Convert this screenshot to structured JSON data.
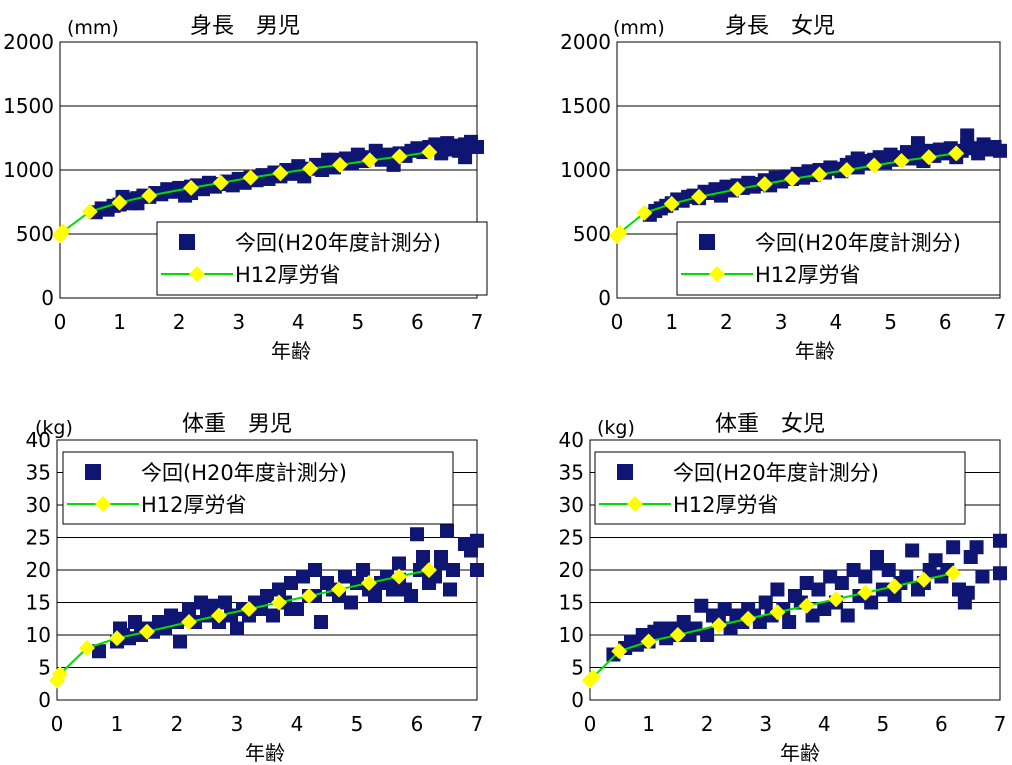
{
  "chart_data": [
    {
      "type": "scatter",
      "title": "身長　男児",
      "unit": "(mm)",
      "xlabel": "年齢",
      "xlim": [
        0,
        7
      ],
      "ylim": [
        0,
        2000
      ],
      "xticks": [
        "0",
        "1",
        "2",
        "3",
        "4",
        "5",
        "6",
        "7"
      ],
      "yticks": [
        "0",
        "500",
        "1000",
        "1500",
        "2000"
      ],
      "grid": true,
      "legend": "center-inside",
      "series": [
        {
          "name": "今回(H20年度計測分)",
          "color": "#0f1572",
          "x": [
            0.6,
            0.7,
            0.8,
            0.9,
            1.0,
            1.05,
            1.1,
            1.15,
            1.2,
            1.3,
            1.4,
            1.5,
            1.6,
            1.7,
            1.8,
            1.9,
            2.0,
            2.1,
            2.2,
            2.3,
            2.4,
            2.5,
            2.6,
            2.7,
            2.8,
            2.9,
            3.0,
            3.1,
            3.2,
            3.3,
            3.4,
            3.5,
            3.6,
            3.7,
            3.8,
            3.9,
            4.0,
            4.1,
            4.2,
            4.3,
            4.4,
            4.5,
            4.6,
            4.7,
            4.8,
            4.9,
            5.0,
            5.1,
            5.2,
            5.3,
            5.4,
            5.5,
            5.6,
            5.7,
            5.8,
            5.9,
            6.0,
            6.1,
            6.2,
            6.3,
            6.4,
            6.5,
            6.6,
            6.7,
            6.8,
            6.9,
            7.0,
            1.3,
            2.2,
            3.6,
            4.6,
            5.6,
            6.5,
            6.8
          ],
          "y": [
            670,
            700,
            690,
            720,
            730,
            790,
            760,
            770,
            740,
            780,
            800,
            790,
            820,
            810,
            850,
            830,
            860,
            800,
            870,
            880,
            850,
            900,
            870,
            890,
            910,
            880,
            930,
            900,
            940,
            920,
            960,
            930,
            980,
            950,
            1000,
            970,
            1030,
            950,
            1010,
            1040,
            1000,
            1080,
            1020,
            1060,
            1090,
            1050,
            1120,
            1070,
            1100,
            1150,
            1080,
            1120,
            1060,
            1130,
            1110,
            1150,
            1170,
            1140,
            1180,
            1200,
            1130,
            1160,
            1190,
            1150,
            1200,
            1220,
            1180,
            740,
            820,
            980,
            1080,
            1040,
            1210,
            1100
          ]
        },
        {
          "name": "H12厚労省",
          "color": "#00dd00",
          "marker_color": "#ffff00",
          "x": [
            0,
            0.05,
            0.5,
            1.0,
            1.5,
            2.2,
            2.7,
            3.2,
            3.7,
            4.2,
            4.7,
            5.2,
            5.7,
            6.2
          ],
          "y": [
            490,
            520,
            675,
            745,
            800,
            860,
            900,
            940,
            975,
            1010,
            1040,
            1075,
            1105,
            1140
          ]
        }
      ]
    },
    {
      "type": "scatter",
      "title": "身長　女児",
      "unit": "(mm)",
      "xlabel": "年齢",
      "xlim": [
        0,
        7
      ],
      "ylim": [
        0,
        2000
      ],
      "xticks": [
        "0",
        "1",
        "2",
        "3",
        "4",
        "5",
        "6",
        "7"
      ],
      "yticks": [
        "0",
        "500",
        "1000",
        "1500",
        "2000"
      ],
      "grid": true,
      "legend": "center-inside",
      "series": [
        {
          "name": "今回(H20年度計測分)",
          "color": "#0f1572",
          "x": [
            0.6,
            0.7,
            0.8,
            0.9,
            1.0,
            1.1,
            1.2,
            1.3,
            1.4,
            1.5,
            1.6,
            1.7,
            1.8,
            1.9,
            2.0,
            2.1,
            2.2,
            2.3,
            2.4,
            2.5,
            2.6,
            2.7,
            2.8,
            2.9,
            3.0,
            3.1,
            3.2,
            3.3,
            3.4,
            3.5,
            3.6,
            3.7,
            3.8,
            3.9,
            4.0,
            4.1,
            4.2,
            4.3,
            4.4,
            4.5,
            4.6,
            4.7,
            4.8,
            4.9,
            5.0,
            5.1,
            5.2,
            5.3,
            5.4,
            5.5,
            5.6,
            5.7,
            5.8,
            5.9,
            6.0,
            6.1,
            6.2,
            6.3,
            6.4,
            6.5,
            6.6,
            6.7,
            6.8,
            6.9,
            7.0,
            5.5,
            6.4,
            4.4
          ],
          "y": [
            650,
            680,
            700,
            720,
            740,
            770,
            760,
            790,
            800,
            780,
            830,
            820,
            850,
            800,
            870,
            840,
            880,
            860,
            900,
            870,
            890,
            920,
            880,
            940,
            910,
            950,
            930,
            970,
            940,
            990,
            960,
            1000,
            980,
            1020,
            1010,
            990,
            1040,
            1060,
            1020,
            1070,
            1050,
            1080,
            1100,
            1060,
            1120,
            1080,
            1100,
            1140,
            1090,
            1120,
            1070,
            1150,
            1110,
            1160,
            1130,
            1170,
            1100,
            1150,
            1190,
            1170,
            1130,
            1200,
            1160,
            1180,
            1150,
            1210,
            1270,
            1090
          ]
        },
        {
          "name": "H12厚労省",
          "color": "#00dd00",
          "marker_color": "#ffff00",
          "x": [
            0,
            0.05,
            0.5,
            1.0,
            1.5,
            2.2,
            2.7,
            3.2,
            3.7,
            4.2,
            4.7,
            5.2,
            5.7,
            6.2
          ],
          "y": [
            485,
            510,
            665,
            735,
            790,
            850,
            890,
            930,
            965,
            1000,
            1035,
            1070,
            1100,
            1130
          ]
        }
      ]
    },
    {
      "type": "scatter",
      "title": "体重　男児",
      "unit": "(kg)",
      "xlabel": "年齢",
      "xlim": [
        0,
        7
      ],
      "ylim": [
        0,
        40
      ],
      "xticks": [
        "0",
        "1",
        "2",
        "3",
        "4",
        "5",
        "6",
        "7"
      ],
      "yticks": [
        "0",
        "5",
        "10",
        "15",
        "20",
        "25",
        "30",
        "35",
        "40"
      ],
      "grid": true,
      "legend": "top-inside",
      "series": [
        {
          "name": "今回(H20年度計測分)",
          "color": "#0f1572",
          "x": [
            0.7,
            1.0,
            1.05,
            1.1,
            1.2,
            1.3,
            1.4,
            1.5,
            1.6,
            1.7,
            1.8,
            1.9,
            2.0,
            2.05,
            2.1,
            2.2,
            2.3,
            2.4,
            2.5,
            2.6,
            2.7,
            2.8,
            2.9,
            3.0,
            3.1,
            3.2,
            3.3,
            3.4,
            3.5,
            3.6,
            3.7,
            3.8,
            3.9,
            4.0,
            4.1,
            4.2,
            4.3,
            4.4,
            4.5,
            4.6,
            4.7,
            4.8,
            4.9,
            5.0,
            5.1,
            5.2,
            5.3,
            5.4,
            5.5,
            5.6,
            5.7,
            5.8,
            5.9,
            6.0,
            6.05,
            6.1,
            6.2,
            6.3,
            6.4,
            6.5,
            6.55,
            6.6,
            6.8,
            6.9,
            7.0,
            7.0,
            4.3,
            3.9,
            5.7,
            6.4
          ],
          "y": [
            7.5,
            9,
            11,
            10,
            9.5,
            12,
            10,
            11,
            10.5,
            12,
            11,
            13,
            12,
            9,
            12.5,
            14,
            12,
            15,
            13,
            14.5,
            12,
            15,
            13,
            11,
            14,
            13,
            15,
            14,
            16,
            13,
            17,
            15,
            18,
            14,
            19,
            16,
            20,
            12,
            18,
            17,
            16,
            19,
            15,
            18,
            20,
            17,
            16,
            18,
            19,
            17,
            21,
            17,
            16,
            25.5,
            20,
            22,
            18,
            19,
            21,
            26,
            17,
            20,
            24,
            23,
            24.5,
            20,
            16,
            14,
            18.5,
            22
          ]
        },
        {
          "name": "H12厚労省",
          "color": "#00dd00",
          "marker_color": "#ffff00",
          "x": [
            0,
            0.05,
            0.5,
            1.0,
            1.5,
            2.2,
            2.7,
            3.2,
            3.7,
            4.2,
            4.7,
            5.2,
            5.7,
            6.2
          ],
          "y": [
            3,
            4,
            8,
            9.5,
            10.5,
            12,
            13,
            14,
            15,
            16,
            17,
            18,
            19,
            20
          ]
        }
      ]
    },
    {
      "type": "scatter",
      "title": "体重　女児",
      "unit": "(kg)",
      "xlabel": "年齢",
      "xlim": [
        0,
        7
      ],
      "ylim": [
        0,
        40
      ],
      "xticks": [
        "0",
        "1",
        "2",
        "3",
        "4",
        "5",
        "6",
        "7"
      ],
      "yticks": [
        "0",
        "5",
        "10",
        "15",
        "20",
        "25",
        "30",
        "35",
        "40"
      ],
      "grid": true,
      "legend": "top-inside",
      "series": [
        {
          "name": "今回(H20年度計測分)",
          "color": "#0f1572",
          "x": [
            0.4,
            0.6,
            0.7,
            0.8,
            0.9,
            1.0,
            1.1,
            1.2,
            1.3,
            1.4,
            1.5,
            1.6,
            1.7,
            1.8,
            1.9,
            2.0,
            2.1,
            2.2,
            2.3,
            2.4,
            2.5,
            2.6,
            2.7,
            2.8,
            2.9,
            3.0,
            3.1,
            3.2,
            3.3,
            3.4,
            3.5,
            3.6,
            3.7,
            3.8,
            3.9,
            4.0,
            4.1,
            4.2,
            4.3,
            4.4,
            4.5,
            4.6,
            4.7,
            4.8,
            4.9,
            5.0,
            5.1,
            5.2,
            5.3,
            5.4,
            5.5,
            5.6,
            5.7,
            5.8,
            5.9,
            6.0,
            6.1,
            6.2,
            6.3,
            6.4,
            6.5,
            6.6,
            6.7,
            7.0,
            7.0,
            6.45,
            4.9
          ],
          "y": [
            7,
            8,
            9,
            8.5,
            10,
            9,
            10.5,
            11,
            9.5,
            11,
            10,
            12,
            10,
            11,
            14.5,
            10,
            13,
            12,
            14,
            11,
            13,
            12,
            14,
            13,
            12,
            15,
            13,
            17,
            14,
            12,
            16,
            15,
            18,
            13,
            17,
            14,
            19,
            15,
            18,
            13,
            20,
            16,
            19,
            15,
            21,
            17,
            20,
            16,
            18,
            19,
            23,
            17,
            18,
            20,
            21.5,
            19,
            20,
            23.5,
            17,
            15,
            22,
            23.5,
            19,
            19.5,
            24.5,
            16.5,
            22
          ]
        },
        {
          "name": "H12厚労省",
          "color": "#00dd00",
          "marker_color": "#ffff00",
          "x": [
            0,
            0.05,
            0.5,
            1.0,
            1.5,
            2.2,
            2.7,
            3.2,
            3.7,
            4.2,
            4.7,
            5.2,
            5.7,
            6.2
          ],
          "y": [
            3,
            3.5,
            7.5,
            9,
            10,
            11.5,
            12.5,
            13.5,
            14.5,
            15.5,
            16.5,
            17.5,
            18.5,
            19.5
          ]
        }
      ]
    }
  ]
}
